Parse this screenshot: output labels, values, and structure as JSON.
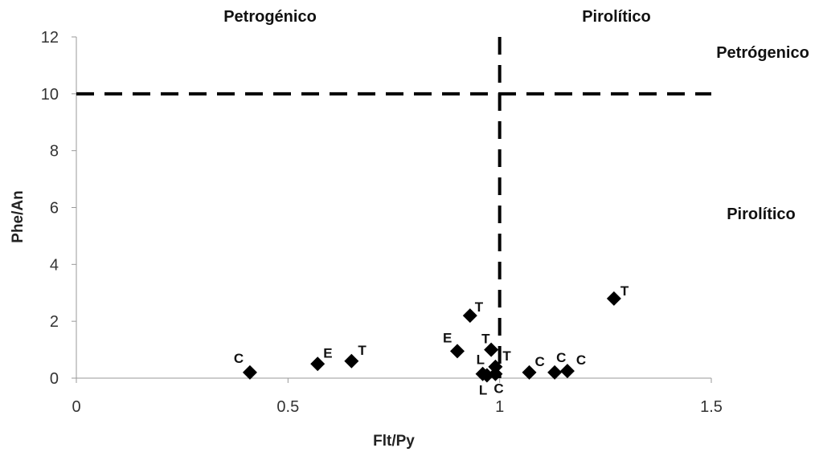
{
  "chart_data": {
    "type": "scatter",
    "xlabel": "Flt/Py",
    "ylabel": "Phe/An",
    "xlim": [
      0,
      1.5
    ],
    "ylim": [
      0,
      12
    ],
    "x_ticks": [
      "0",
      "0.5",
      "1",
      "1.5"
    ],
    "y_ticks": [
      "0",
      "2",
      "4",
      "6",
      "8",
      "10",
      "12"
    ],
    "grid": false,
    "marker": "diamond",
    "marker_color": "#000000",
    "thresholds": {
      "x": 1,
      "y": 10,
      "style": "dashed"
    },
    "region_labels": {
      "top_left": "Petrogénico",
      "top_right": "Pirolítico",
      "right_upper": "Petrógenico",
      "right_lower": "Pirolítico"
    },
    "series": [
      {
        "points": [
          {
            "x": 0.41,
            "y": 0.2,
            "label": "C"
          },
          {
            "x": 0.57,
            "y": 0.5,
            "label": "E"
          },
          {
            "x": 0.65,
            "y": 0.6,
            "label": "T"
          },
          {
            "x": 0.9,
            "y": 0.95,
            "label": "E"
          },
          {
            "x": 0.93,
            "y": 2.2,
            "label": "T"
          },
          {
            "x": 0.98,
            "y": 1.0,
            "label": "T"
          },
          {
            "x": 0.96,
            "y": 0.15,
            "label": "L"
          },
          {
            "x": 0.97,
            "y": 0.1,
            "label": "L"
          },
          {
            "x": 0.99,
            "y": 0.15,
            "label": "C"
          },
          {
            "x": 0.99,
            "y": 0.4,
            "label": "T"
          },
          {
            "x": 1.07,
            "y": 0.2,
            "label": "C"
          },
          {
            "x": 1.13,
            "y": 0.2,
            "label": "C"
          },
          {
            "x": 1.16,
            "y": 0.25,
            "label": "C"
          },
          {
            "x": 1.27,
            "y": 2.8,
            "label": "T"
          }
        ]
      }
    ]
  }
}
